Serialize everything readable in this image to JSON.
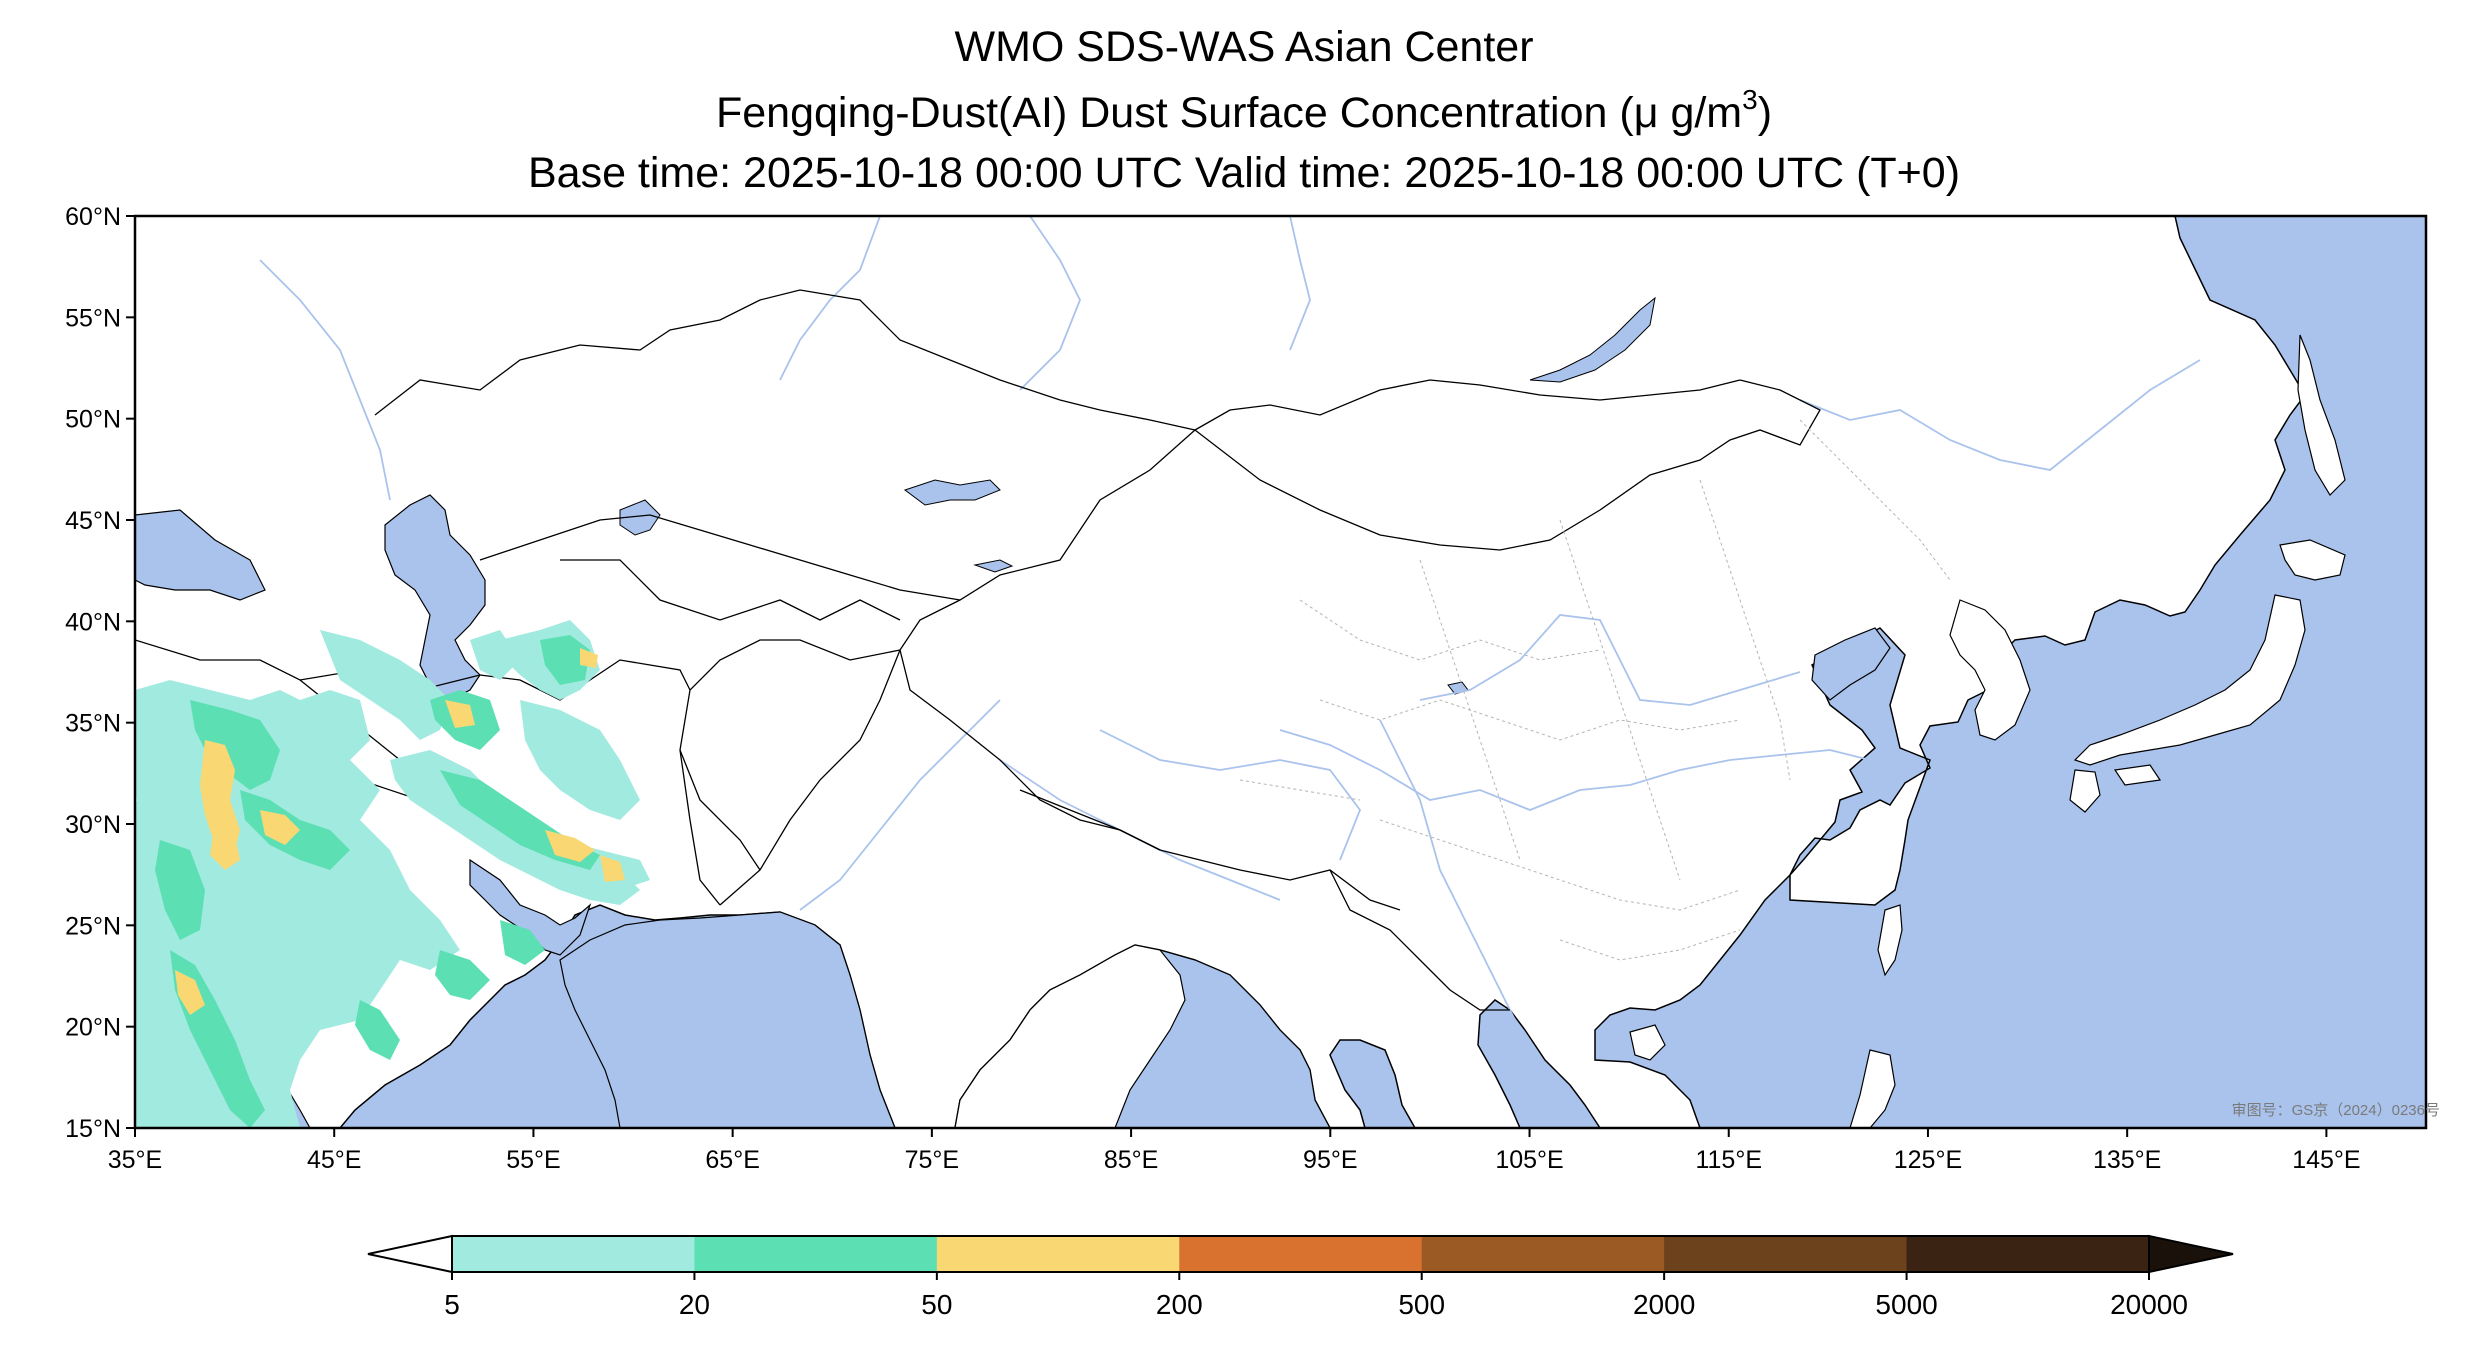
{
  "header": {
    "line1": "WMO SDS-WAS Asian Center",
    "line2_prefix": "Fengqing-Dust(AI) Dust Surface Concentration (",
    "line2_unit": "μ g/m",
    "line2_exp": "3",
    "line2_suffix": ")",
    "line3": "Base time: 2025-10-18 00:00 UTC Valid time: 2025-10-18 00:00 UTC (T+0)"
  },
  "map": {
    "lon_range": [
      35,
      150
    ],
    "lat_range": [
      15,
      60
    ],
    "x_ticks": [
      "35°E",
      "45°E",
      "55°E",
      "65°E",
      "75°E",
      "85°E",
      "95°E",
      "105°E",
      "115°E",
      "125°E",
      "135°E",
      "145°E"
    ],
    "y_ticks": [
      "60°N",
      "55°N",
      "50°N",
      "45°N",
      "40°N",
      "35°N",
      "30°N",
      "25°N",
      "20°N",
      "15°N"
    ],
    "colors": {
      "ocean": "#aac3ec",
      "land": "#ffffff",
      "river": "#aac3ec",
      "border": "#000000",
      "province": "#b4b4b4"
    },
    "watermark": "审图号：GS京（2024）0236号"
  },
  "colorbar": {
    "labels": [
      "5",
      "20",
      "50",
      "200",
      "500",
      "2000",
      "5000",
      "20000"
    ],
    "colors": [
      "#a0eadf",
      "#5ddfb4",
      "#f9d874",
      "#d9722f",
      "#9b5a24",
      "#6b421c",
      "#3b2313",
      "#1a110b"
    ]
  },
  "dust_levels": {
    "5": "#a0eadf",
    "20": "#5ddfb4",
    "50": "#f9d874"
  }
}
